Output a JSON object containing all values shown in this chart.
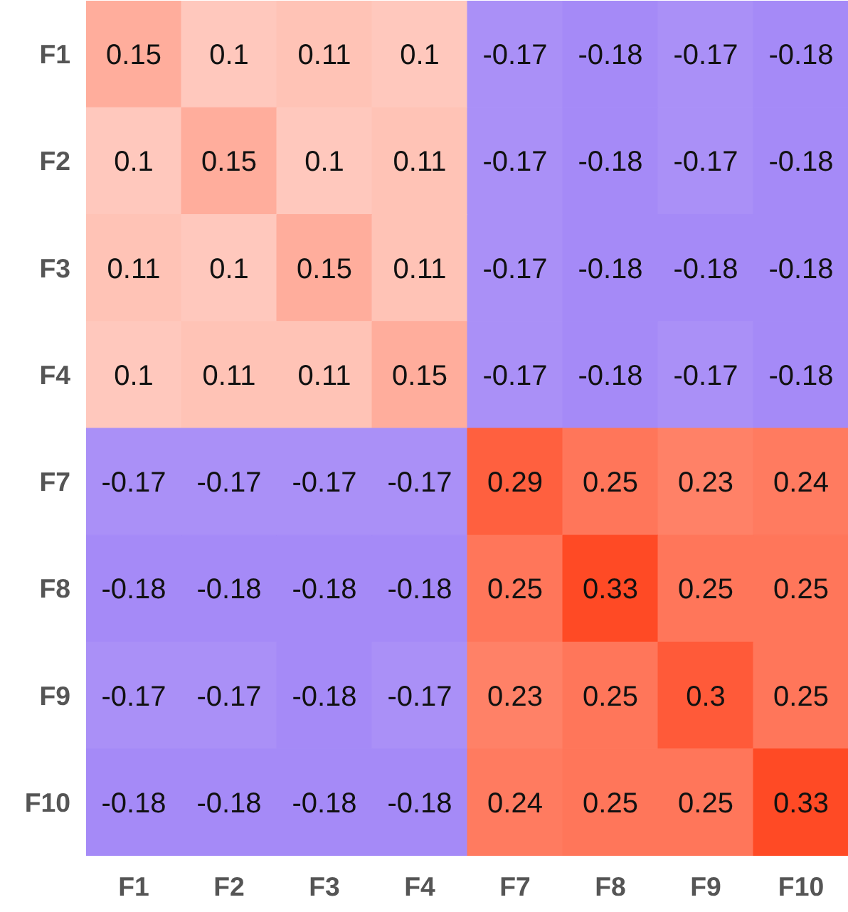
{
  "chart_data": {
    "type": "heatmap",
    "categories": [
      "F1",
      "F2",
      "F3",
      "F4",
      "F7",
      "F8",
      "F9",
      "F10"
    ],
    "y_categories": [
      "F1",
      "F2",
      "F3",
      "F4",
      "F7",
      "F8",
      "F9",
      "F10"
    ],
    "cells": [
      [
        0.15,
        0.1,
        0.11,
        0.1,
        -0.17,
        -0.18,
        -0.17,
        -0.18
      ],
      [
        0.1,
        0.15,
        0.1,
        0.11,
        -0.17,
        -0.18,
        -0.17,
        -0.18
      ],
      [
        0.11,
        0.1,
        0.15,
        0.11,
        -0.17,
        -0.18,
        -0.18,
        -0.18
      ],
      [
        0.1,
        0.11,
        0.11,
        0.15,
        -0.17,
        -0.18,
        -0.17,
        -0.18
      ],
      [
        -0.17,
        -0.17,
        -0.17,
        -0.17,
        0.29,
        0.25,
        0.23,
        0.24
      ],
      [
        -0.18,
        -0.18,
        -0.18,
        -0.18,
        0.25,
        0.33,
        0.25,
        0.25
      ],
      [
        -0.17,
        -0.17,
        -0.18,
        -0.17,
        0.23,
        0.25,
        0.3,
        0.25
      ],
      [
        -0.18,
        -0.18,
        -0.18,
        -0.18,
        0.24,
        0.25,
        0.25,
        0.33
      ]
    ],
    "colors": [
      "#a58af7",
      "#ffffff",
      "#ff4a25"
    ],
    "data_labels": true
  }
}
